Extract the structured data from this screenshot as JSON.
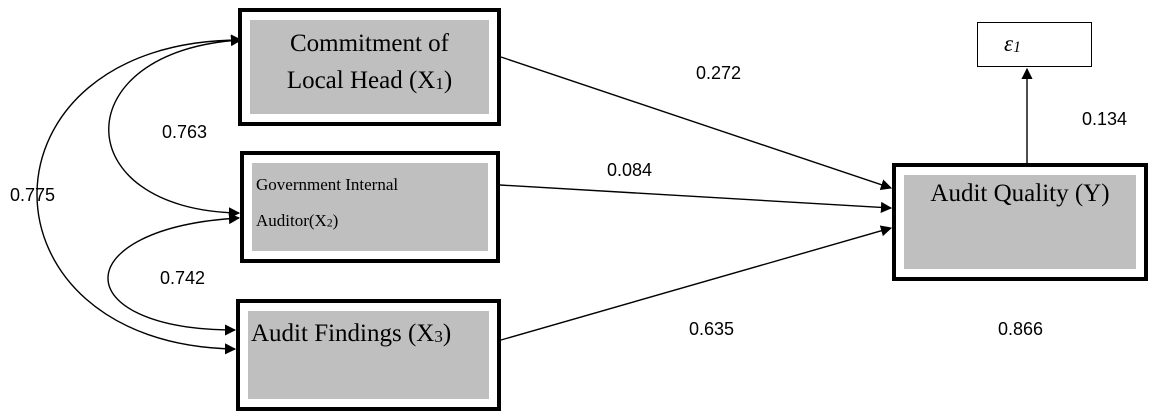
{
  "nodes": {
    "x1": {
      "line1": "Commitment of",
      "line2_main": "Local Head (X",
      "line2_sub": "1",
      "line2_end": ")"
    },
    "x2": {
      "line1": "Government Internal",
      "line2_main": "Auditor(X",
      "line2_sub": "2",
      "line2_end": ")"
    },
    "x3": {
      "main": "Audit Findings (X",
      "sub": "3",
      "end": ")"
    },
    "y": {
      "label": "Audit Quality (Y)"
    },
    "error": {
      "symbol": "ε",
      "sub": "1"
    }
  },
  "coefficients": {
    "x1_y": "0.272",
    "x2_y": "0.084",
    "x3_y": "0.635",
    "y_error": "0.134",
    "r_square": "0.866",
    "x1_x2": "0.763",
    "x2_x3": "0.742",
    "x1_x3": "0.775"
  }
}
